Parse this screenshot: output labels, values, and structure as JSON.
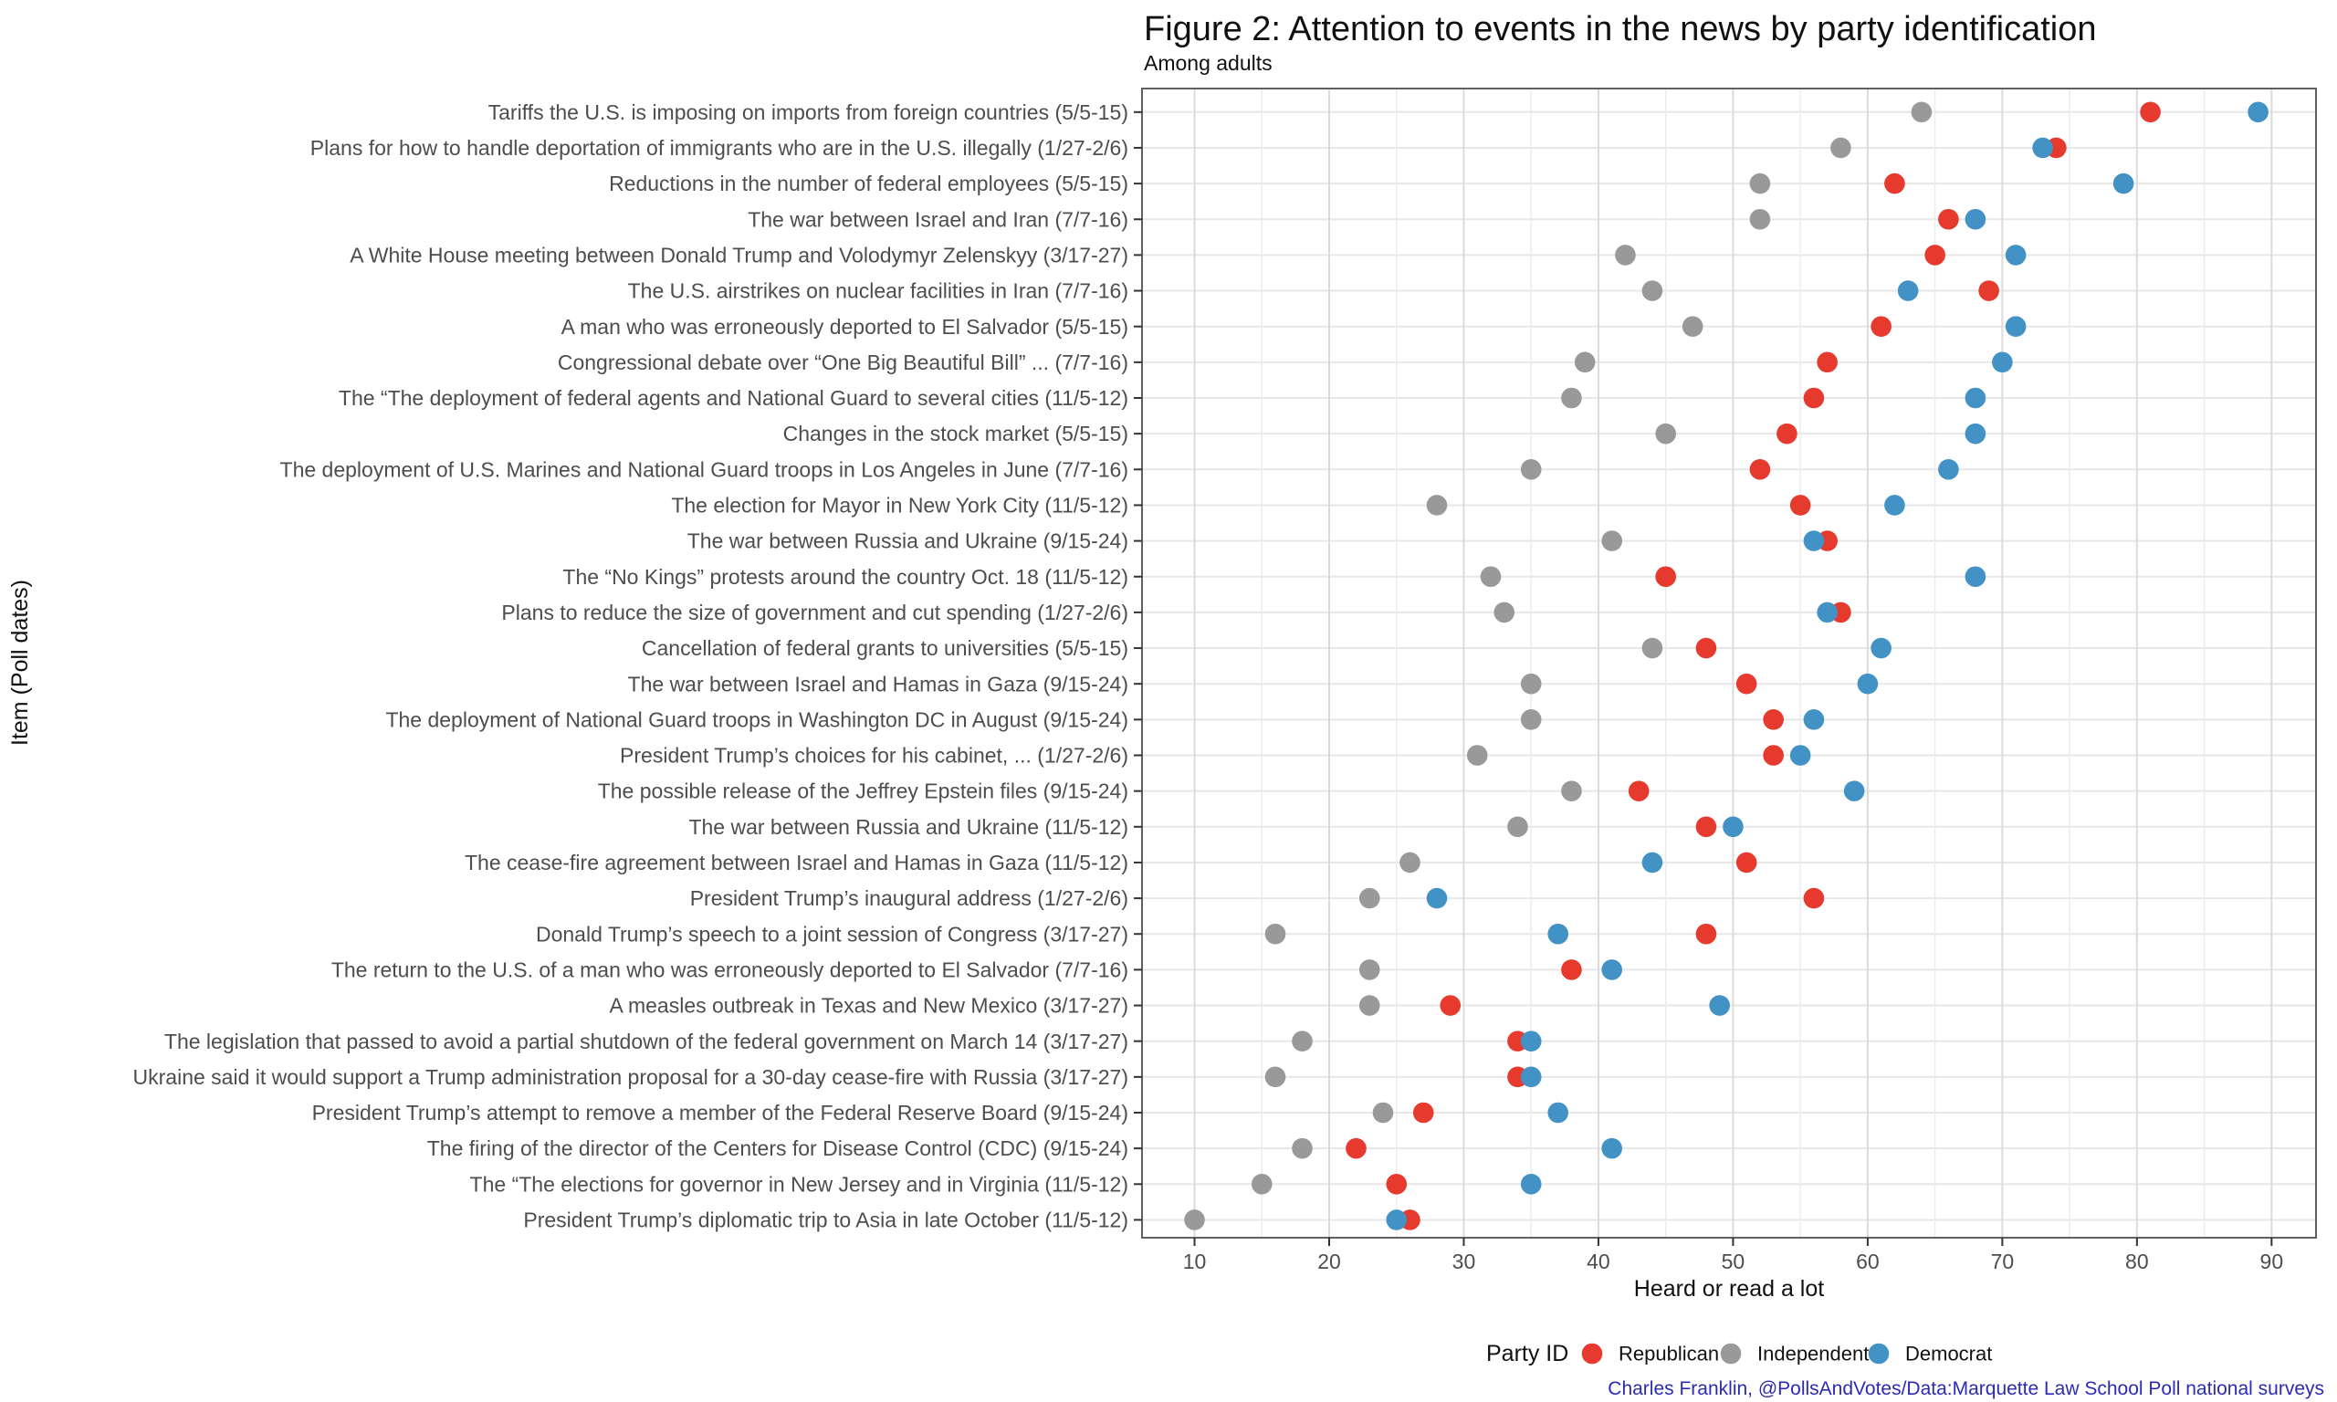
{
  "header": {
    "title": "Figure 2: Attention to events in the news by party identification",
    "subtitle": "Among adults"
  },
  "axes": {
    "x_title": "Heard or read a lot",
    "y_title": "Item (Poll dates)",
    "x_ticks": [
      10,
      20,
      30,
      40,
      50,
      60,
      70,
      80,
      90
    ]
  },
  "legend": {
    "title": "Party ID",
    "entries": [
      {
        "label": "Republican",
        "color": "#E63A2E"
      },
      {
        "label": "Independent",
        "color": "#999999"
      },
      {
        "label": "Democrat",
        "color": "#4292C6"
      }
    ]
  },
  "credit": "Charles Franklin, @PollsAndVotes/Data:Marquette Law School Poll national surveys",
  "colors": {
    "republican": "#E63A2E",
    "independent": "#999999",
    "democrat": "#4292C6",
    "credit_text": "#2B2BB5",
    "axis_text": "#4D4D4D",
    "panel_border": "#606060",
    "grid_major": "#DBDBDB",
    "grid_minor": "#ECECEC",
    "grid_row": "#E7E7E7"
  },
  "chart_data": {
    "type": "scatter",
    "title": "Figure 2: Attention to events in the news by party identification",
    "subtitle": "Among adults",
    "xlabel": "Heard or read a lot",
    "ylabel": "Item (Poll dates)",
    "xlim": [
      6.1,
      93.3
    ],
    "x_ticks": [
      10,
      20,
      30,
      40,
      50,
      60,
      70,
      80,
      90
    ],
    "grid": "on",
    "legend_position": "bottom",
    "legend_title": "Party ID",
    "categories": [
      "Tariffs the U.S. is imposing on imports from foreign countries (5/5-15)",
      "Plans for how to handle deportation of immigrants who are in the U.S. illegally (1/27-2/6)",
      "Reductions in the number of federal employees (5/5-15)",
      "The war between Israel and Iran (7/7-16)",
      "A White House meeting between Donald Trump and Volodymyr Zelenskyy (3/17-27)",
      "The U.S. airstrikes on nuclear facilities in Iran (7/7-16)",
      "A man who was erroneously deported to El Salvador (5/5-15)",
      "Congressional debate over “One Big Beautiful Bill” ... (7/7-16)",
      "The “The deployment of federal agents and National Guard to several cities (11/5-12)",
      "Changes in the stock market (5/5-15)",
      "The deployment of U.S. Marines and National Guard troops in Los Angeles in June (7/7-16)",
      "The election for Mayor in New York City (11/5-12)",
      "The war between Russia and Ukraine (9/15-24)",
      "The “No Kings” protests around the country Oct. 18 (11/5-12)",
      "Plans to reduce the size of government and cut spending (1/27-2/6)",
      "Cancellation of federal grants to universities (5/5-15)",
      "The war between Israel and Hamas in Gaza (9/15-24)",
      "The deployment of National Guard troops in Washington DC in August (9/15-24)",
      "President Trump’s choices for his cabinet, ... (1/27-2/6)",
      "The possible release of the Jeffrey Epstein files (9/15-24)",
      "The war between Russia and Ukraine (11/5-12)",
      "The cease-fire agreement between Israel and Hamas in Gaza (11/5-12)",
      "President Trump’s inaugural address (1/27-2/6)",
      "Donald Trump’s speech to a joint session of Congress (3/17-27)",
      "The return to the U.S. of a man who was erroneously deported to El Salvador (7/7-16)",
      "A measles outbreak in Texas and New Mexico (3/17-27)",
      "The legislation that passed to avoid a partial shutdown of the federal government on March 14 (3/17-27)",
      "Ukraine said it would support a Trump administration proposal for a 30-day cease-fire with Russia (3/17-27)",
      "President Trump’s attempt to remove a member of the Federal Reserve Board (9/15-24)",
      "The firing of the director of the Centers for Disease Control (CDC) (9/15-24)",
      "The “The elections for governor in New Jersey and in Virginia (11/5-12)",
      "President Trump’s diplomatic trip to Asia in late October (11/5-12)"
    ],
    "series": [
      {
        "name": "Republican",
        "color": "#E63A2E",
        "values": [
          81,
          74,
          62,
          66,
          65,
          69,
          61,
          57,
          56,
          54,
          52,
          55,
          57,
          45,
          58,
          48,
          51,
          53,
          53,
          43,
          48,
          51,
          56,
          48,
          38,
          29,
          34,
          34,
          27,
          22,
          25,
          26
        ]
      },
      {
        "name": "Independent",
        "color": "#999999",
        "values": [
          64,
          58,
          52,
          52,
          42,
          44,
          47,
          39,
          38,
          45,
          35,
          28,
          41,
          32,
          33,
          44,
          35,
          35,
          31,
          38,
          34,
          26,
          23,
          16,
          23,
          23,
          18,
          16,
          24,
          18,
          15,
          10
        ]
      },
      {
        "name": "Democrat",
        "color": "#4292C6",
        "values": [
          89,
          73,
          79,
          68,
          71,
          63,
          71,
          70,
          68,
          68,
          66,
          62,
          56,
          68,
          57,
          61,
          60,
          56,
          55,
          59,
          50,
          44,
          28,
          37,
          41,
          49,
          35,
          35,
          37,
          41,
          35,
          25
        ]
      }
    ]
  }
}
